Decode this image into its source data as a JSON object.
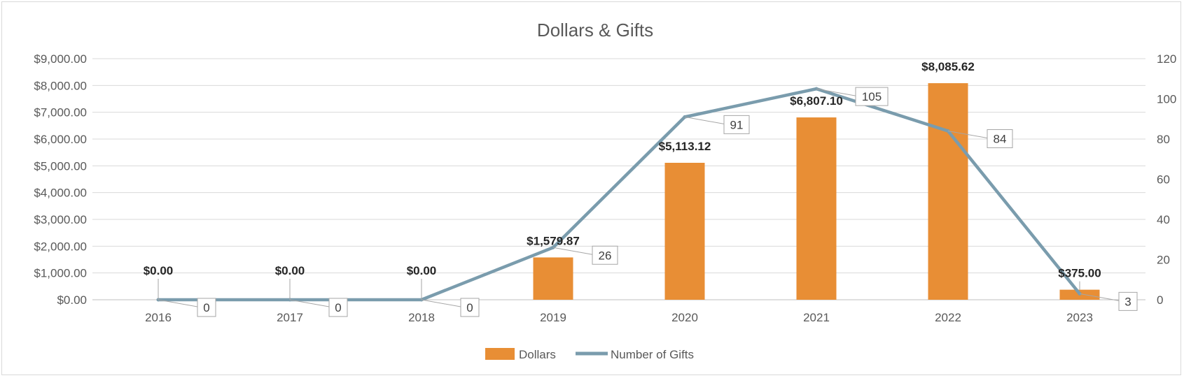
{
  "chart_data": {
    "type": "bar",
    "title": "Dollars & Gifts",
    "categories": [
      "2016",
      "2017",
      "2018",
      "2019",
      "2020",
      "2021",
      "2022",
      "2023"
    ],
    "series": [
      {
        "name": "Dollars",
        "type": "bar",
        "axis": "left",
        "color": "#e88e35",
        "values": [
          0,
          0,
          0,
          1579.87,
          5113.12,
          6807.1,
          8085.62,
          375.0
        ],
        "labels": [
          "$0.00",
          "$0.00",
          "$0.00",
          "$1,579.87",
          "$5,113.12",
          "$6,807.10",
          "$8,085.62",
          "$375.00"
        ]
      },
      {
        "name": "Number of Gifts",
        "type": "line",
        "axis": "right",
        "color": "#7a9cad",
        "values": [
          0,
          0,
          0,
          26,
          91,
          105,
          84,
          3
        ],
        "labels": [
          "0",
          "0",
          "0",
          "26",
          "91",
          "105",
          "84",
          "3"
        ]
      }
    ],
    "y_left": {
      "ylim": [
        0,
        9000
      ],
      "ticks": [
        0,
        1000,
        2000,
        3000,
        4000,
        5000,
        6000,
        7000,
        8000,
        9000
      ],
      "tick_labels": [
        "$0.00",
        "$1,000.00",
        "$2,000.00",
        "$3,000.00",
        "$4,000.00",
        "$5,000.00",
        "$6,000.00",
        "$7,000.00",
        "$8,000.00",
        "$9,000.00"
      ]
    },
    "y_right": {
      "ylim": [
        0,
        120
      ],
      "ticks": [
        0,
        20,
        40,
        60,
        80,
        100,
        120
      ],
      "tick_labels": [
        "0",
        "20",
        "40",
        "60",
        "80",
        "100",
        "120"
      ]
    },
    "grid": true,
    "legend": "bottom"
  }
}
